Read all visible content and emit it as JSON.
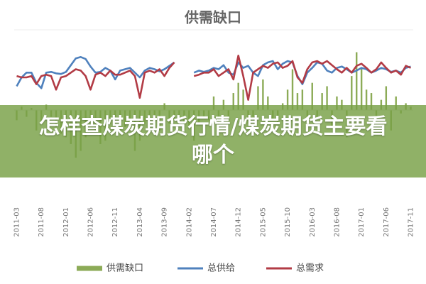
{
  "chart_data": {
    "type": "combo",
    "title": "供需缺口",
    "categories": [
      "2011-03",
      null,
      null,
      null,
      null,
      "2011-08",
      null,
      null,
      null,
      null,
      "2012-01",
      null,
      null,
      null,
      null,
      "2012-06",
      null,
      null,
      null,
      null,
      "2012-11",
      null,
      null,
      null,
      null,
      "2013-04",
      null,
      null,
      null,
      null,
      "2013-09",
      null,
      null,
      null,
      null,
      "2014-02",
      null,
      null,
      null,
      null,
      "2014-07",
      null,
      null,
      null,
      null,
      "2014-12",
      null,
      null,
      null,
      null,
      "2015-05",
      null,
      null,
      null,
      null,
      "2015-10",
      null,
      null,
      null,
      null,
      "2016-03",
      null,
      null,
      null,
      null,
      "2016-08",
      null,
      null,
      null,
      null,
      "2017-01",
      null,
      null,
      null,
      null,
      "2017-06",
      null,
      null,
      null,
      null,
      "2017-11"
    ],
    "ylim": [
      -120,
      120
    ],
    "series": [
      {
        "name": "供需缺口",
        "type": "bar",
        "color": "#8cab57",
        "values": [
          -15,
          5,
          -10,
          3,
          -30,
          -20,
          8,
          -10,
          -25,
          -35,
          -40,
          -50,
          -70,
          -60,
          -40,
          -20,
          -30,
          -50,
          -45,
          -20,
          -10,
          -30,
          -25,
          -15,
          -60,
          -45,
          -20,
          -10,
          -20,
          -30,
          10,
          -20,
          -15,
          -10,
          -30,
          -25,
          -45,
          -20,
          -10,
          -15,
          20,
          -35,
          15,
          -20,
          25,
          40,
          30,
          -20,
          -10,
          35,
          45,
          20,
          -15,
          -20,
          10,
          30,
          60,
          25,
          30,
          -20,
          40,
          -10,
          25,
          35,
          -25,
          20,
          15,
          -40,
          50,
          85,
          60,
          30,
          25,
          -10,
          15,
          35,
          -30,
          20,
          -5,
          10,
          5
        ]
      },
      {
        "name": "总供给",
        "type": "line",
        "color": "#4f81bd",
        "values": [
          35,
          48,
          55,
          55,
          40,
          32,
          55,
          56,
          54,
          53,
          56,
          66,
          76,
          78,
          75,
          64,
          55,
          56,
          62,
          58,
          45,
          58,
          60,
          62,
          55,
          48,
          58,
          62,
          60,
          57,
          60,
          65,
          70,
          null,
          null,
          null,
          55,
          58,
          56,
          58,
          62,
          60,
          66,
          55,
          52,
          70,
          62,
          65,
          55,
          50,
          66,
          70,
          72,
          60,
          68,
          72,
          70,
          50,
          38,
          55,
          62,
          70,
          68,
          58,
          55,
          62,
          64,
          60,
          55,
          58,
          62,
          60,
          55,
          58,
          62,
          60,
          56,
          58,
          55,
          62,
          64
        ]
      },
      {
        "name": "总需求",
        "type": "line",
        "color": "#b23b45",
        "values": [
          50,
          48,
          48,
          50,
          38,
          50,
          52,
          50,
          30,
          48,
          50,
          55,
          60,
          58,
          50,
          30,
          52,
          55,
          50,
          58,
          52,
          52,
          55,
          58,
          50,
          18,
          55,
          58,
          55,
          60,
          50,
          62,
          70,
          null,
          null,
          null,
          50,
          52,
          55,
          55,
          60,
          50,
          55,
          60,
          45,
          80,
          50,
          15,
          55,
          60,
          65,
          62,
          68,
          70,
          62,
          65,
          72,
          48,
          40,
          60,
          70,
          72,
          68,
          72,
          66,
          60,
          55,
          62,
          55,
          65,
          68,
          62,
          55,
          60,
          70,
          62,
          55,
          58,
          52,
          65,
          62
        ]
      }
    ]
  },
  "banner_text": "怎样查煤炭期货行情/煤炭期货主要看哪个"
}
